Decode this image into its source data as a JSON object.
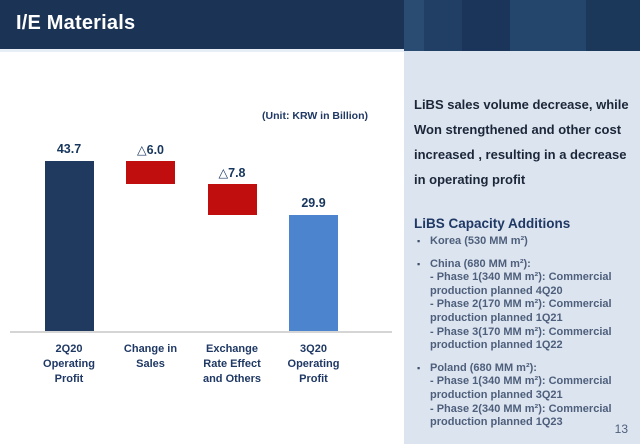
{
  "slide": {
    "title": "I/E Materials",
    "page_number": "13"
  },
  "chart_data": {
    "type": "bar",
    "subtype": "waterfall",
    "unit_label": "(Unit: KRW in Billion)",
    "categories": [
      "2Q20\nOperating\nProfit",
      "Change in\nSales",
      "Exchange\nRate Effect\nand Others",
      "3Q20\nOperating\nProfit"
    ],
    "bars": [
      {
        "category": "2Q20 Operating Profit",
        "label": "43.7",
        "value": 43.7,
        "from": 0.0,
        "to": 43.7,
        "color": "#20395E",
        "kind": "total"
      },
      {
        "category": "Change in Sales",
        "label": "△6.0",
        "value": -6.0,
        "from": 37.7,
        "to": 43.7,
        "color": "#C00E0E",
        "kind": "decrease"
      },
      {
        "category": "Exchange Rate Effect and Others",
        "label": "△7.8",
        "value": -7.8,
        "from": 29.9,
        "to": 37.7,
        "color": "#C00E0E",
        "kind": "decrease"
      },
      {
        "category": "3Q20 Operating Profit",
        "label": "29.9",
        "value": 29.9,
        "from": 0.0,
        "to": 29.9,
        "color": "#4C85CD",
        "kind": "total"
      }
    ],
    "ylim": [
      0,
      45
    ],
    "grid": false,
    "legend": false,
    "axis_color": "#D5D5D5"
  },
  "panel": {
    "intro_lines": [
      "LiBS sales volume decrease, while",
      "Won strengthened and other cost",
      "increased , resulting in a decrease",
      "in operating profit"
    ],
    "capacity_heading": "LiBS Capacity Additions",
    "bullets": [
      {
        "lines": [
          "Korea (530 MM m²)"
        ]
      },
      {
        "lines": [
          "China (680 MM m²):",
          "- Phase 1(340 MM m²): Commercial",
          "production planned 4Q20",
          "- Phase 2(170 MM m²): Commercial",
          "production planned 1Q21",
          "- Phase 3(170 MM m²): Commercial",
          "production planned 1Q22"
        ]
      },
      {
        "lines": [
          "Poland (680 MM m²):",
          "- Phase 1(340 MM m²): Commercial",
          "production planned 3Q21",
          "- Phase 2(340 MM m²): Commercial",
          "production planned 1Q23"
        ]
      }
    ]
  },
  "colors": {
    "header_navy": "#1B3456",
    "panel_bg": "#DCE4F0",
    "bar_navy": "#20395E",
    "bar_red": "#C00E0E",
    "bar_blue": "#4C85CD",
    "text_navy": "#1F3864",
    "bullet_text": "#4E5F7B",
    "top_block_stripes": [
      "#2A4B72",
      "#213F64",
      "#1B3459",
      "#25466C",
      "#1B3759"
    ]
  }
}
